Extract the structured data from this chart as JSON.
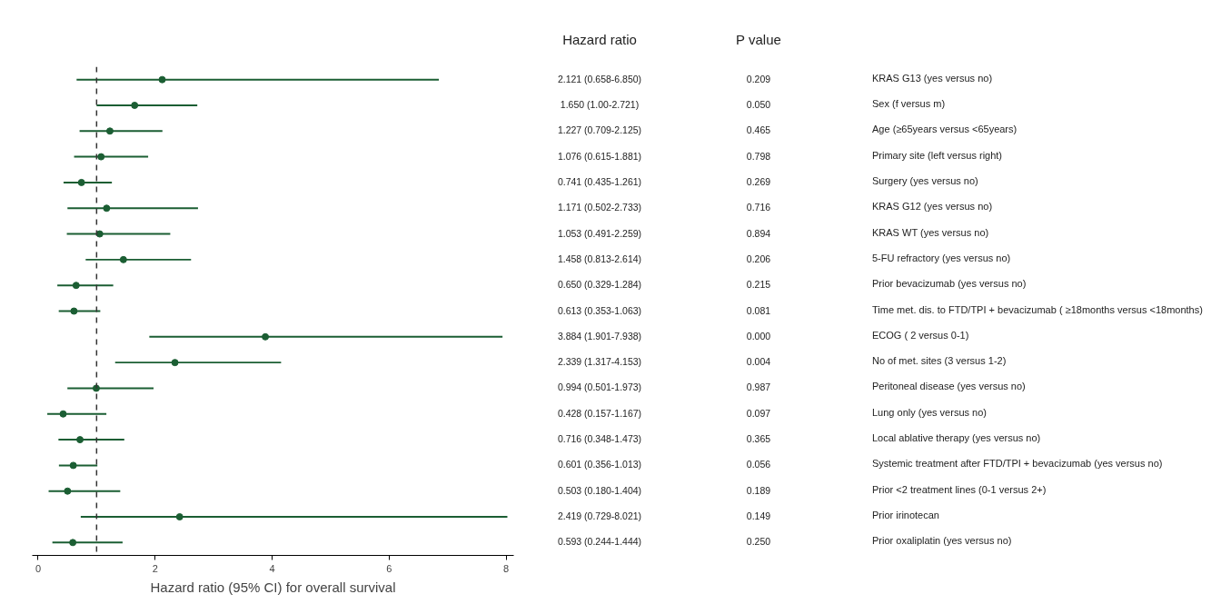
{
  "chart_data": {
    "type": "scatter",
    "orientation": "horizontal",
    "xlabel": "Hazard ratio (95% CI) for overall survival",
    "y_categories": [
      "KRAS G13 (yes versus no)",
      "Sex (f versus m)",
      "Age (≥65years versus <65years)",
      "Primary site (left versus right)",
      "Surgery (yes versus no)",
      "KRAS G12 (yes versus no)",
      "KRAS WT (yes versus no)",
      "5-FU refractory  (yes versus no)",
      "Prior bevacizumab (yes versus no)",
      "Time met. dis. to FTD/TPI + bevacizumab ( ≥18months versus <18months)",
      "ECOG ( 2 versus 0-1)",
      "No of met. sites (3 versus 1-2)",
      "Peritoneal disease (yes versus no)",
      "Lung only (yes versus no)",
      "Local ablative therapy (yes versus no)",
      "Systemic treatment after FTD/TPI + bevacizumab (yes versus no)",
      "Prior <2 treatment lines (0-1 versus 2+)",
      "Prior irinotecan",
      "Prior oxaliplatin (yes versus no)"
    ],
    "values": [
      2.121,
      1.65,
      1.227,
      1.076,
      0.741,
      1.171,
      1.053,
      1.458,
      0.65,
      0.613,
      3.884,
      2.339,
      0.994,
      0.428,
      0.716,
      0.601,
      0.503,
      2.419,
      0.593
    ],
    "errors": [
      [
        0.658,
        6.85
      ],
      [
        1.0,
        2.721
      ],
      [
        0.709,
        2.125
      ],
      [
        0.615,
        1.881
      ],
      [
        0.435,
        1.261
      ],
      [
        0.502,
        2.733
      ],
      [
        0.491,
        2.259
      ],
      [
        0.813,
        2.614
      ],
      [
        0.329,
        1.284
      ],
      [
        0.353,
        1.063
      ],
      [
        1.901,
        7.938
      ],
      [
        1.317,
        4.153
      ],
      [
        0.501,
        1.973
      ],
      [
        0.157,
        1.167
      ],
      [
        0.348,
        1.473
      ],
      [
        0.356,
        1.013
      ],
      [
        0.18,
        1.404
      ],
      [
        0.729,
        8.021
      ],
      [
        0.244,
        1.444
      ]
    ],
    "value_labels": [
      "2.121 (0.658-6.850)",
      "1.650 (1.00-2.721)",
      "1.227 (0.709-2.125)",
      "1.076 (0.615-1.881)",
      "0.741 (0.435-1.261)",
      "1.171 (0.502-2.733)",
      "1.053 (0.491-2.259)",
      "1.458 (0.813-2.614)",
      "0.650 (0.329-1.284)",
      "0.613 (0.353-1.063)",
      "3.884 (1.901-7.938)",
      "2.339 (1.317-4.153)",
      "0.994 (0.501-1.973)",
      "0.428 (0.157-1.167)",
      "0.716 (0.348-1.473)",
      "0.601 (0.356-1.013)",
      "0.503 (0.180-1.404)",
      "2.419 (0.729-8.021)",
      "0.593 (0.244-1.444)"
    ],
    "color": "#1b5e33",
    "marker": "circle",
    "xlim": [
      -0.1,
      8.13
    ],
    "xticks": [
      0,
      2,
      4,
      6,
      8
    ],
    "ref_lines": [
      {
        "axis": "x",
        "value": 1,
        "line_style": "dashed",
        "color": "#333333"
      }
    ],
    "annotations": [
      "Hazard ratio",
      "P value",
      "0.209",
      "0.050",
      "0.465",
      "0.798",
      "0.269",
      "0.716",
      "0.894",
      "0.206",
      "0.215",
      "0.081",
      "0.000",
      "0.004",
      "0.987",
      "0.097",
      "0.365",
      "0.056",
      "0.189",
      "0.149",
      "0.250"
    ]
  }
}
